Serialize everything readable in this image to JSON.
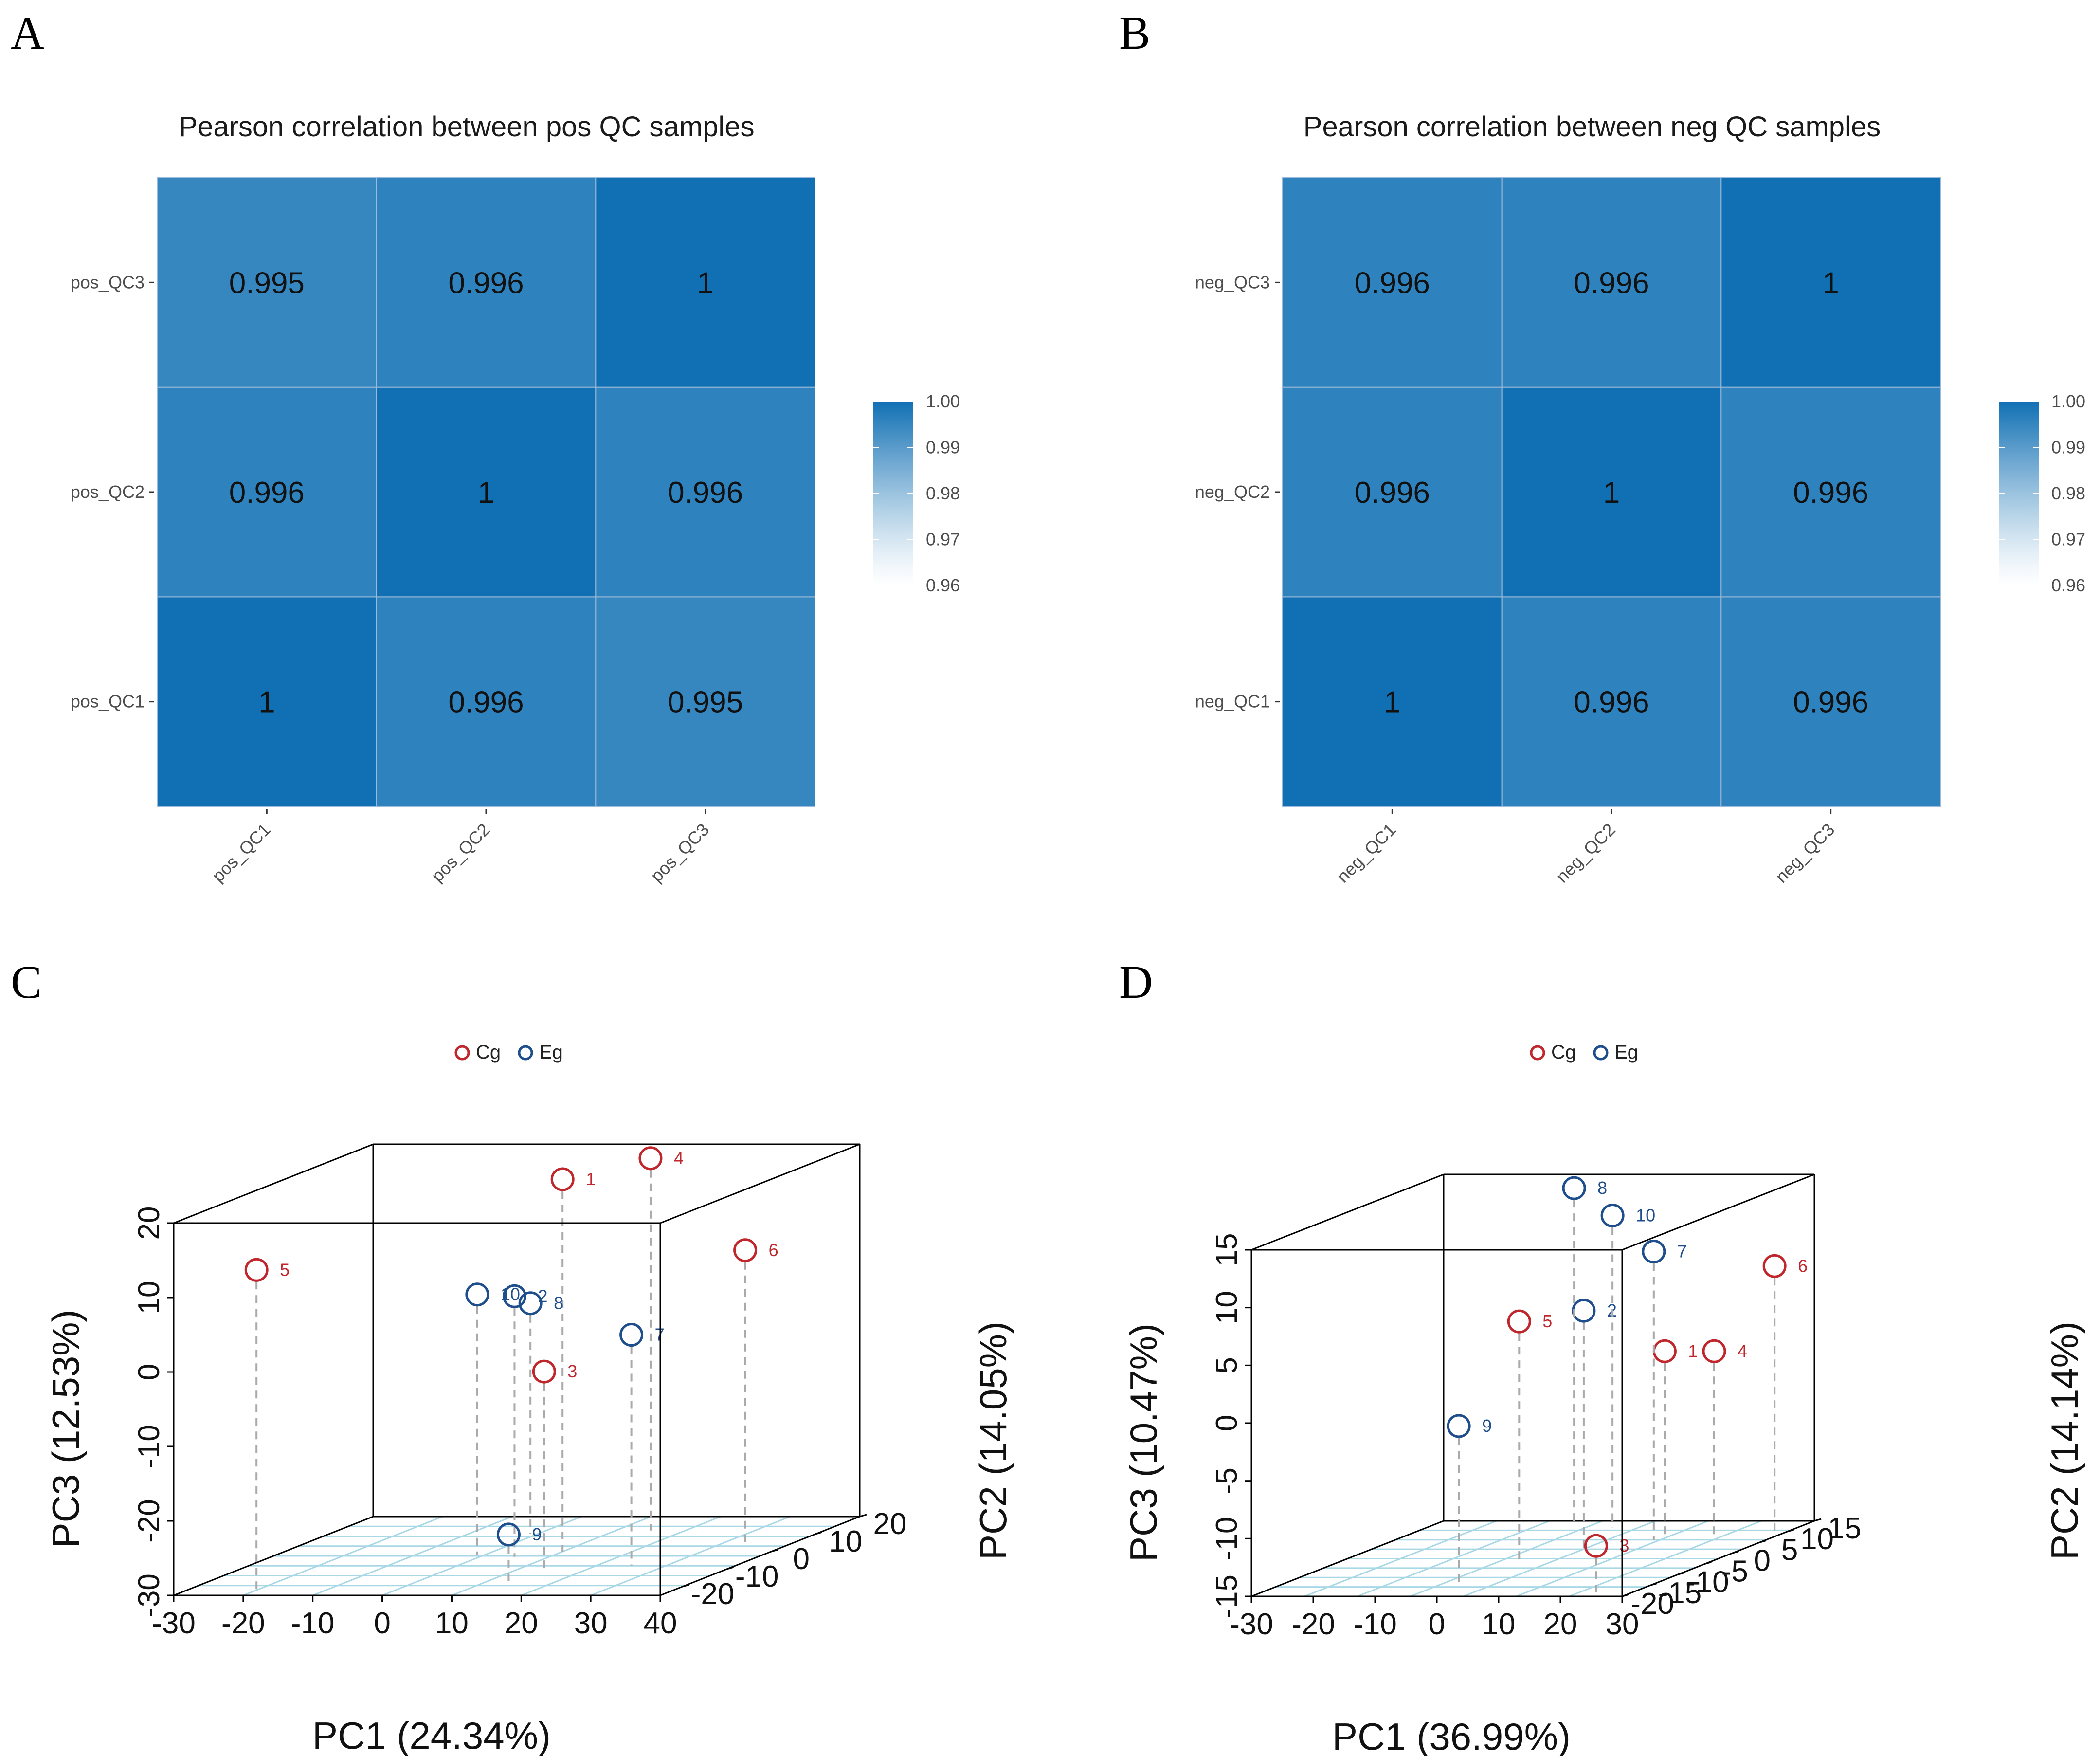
{
  "panels": [
    {
      "letter": "A"
    },
    {
      "letter": "B"
    },
    {
      "letter": "C"
    },
    {
      "letter": "D"
    }
  ],
  "chart_data": [
    {
      "type": "heatmap",
      "panel": "A",
      "title": "Pearson correlation between pos QC samples",
      "x_categories": [
        "pos_QC1",
        "pos_QC2",
        "pos_QC3"
      ],
      "y_categories": [
        "pos_QC1",
        "pos_QC2",
        "pos_QC3"
      ],
      "matrix": [
        [
          "1",
          "0.996",
          "0.995"
        ],
        [
          "0.996",
          "1",
          "0.996"
        ],
        [
          "0.995",
          "0.996",
          "1"
        ]
      ],
      "colorbar": {
        "range": [
          0.96,
          1.0
        ],
        "ticks": [
          "1.00",
          "0.99",
          "0.98",
          "0.97",
          "0.96"
        ],
        "low_color": "#ffffff",
        "high_color": "#1170b4"
      }
    },
    {
      "type": "heatmap",
      "panel": "B",
      "title": "Pearson correlation between neg QC samples",
      "x_categories": [
        "neg_QC1",
        "neg_QC2",
        "neg_QC3"
      ],
      "y_categories": [
        "neg_QC1",
        "neg_QC2",
        "neg_QC3"
      ],
      "matrix": [
        [
          "1",
          "0.996",
          "0.996"
        ],
        [
          "0.996",
          "1",
          "0.996"
        ],
        [
          "0.996",
          "0.996",
          "1"
        ]
      ],
      "colorbar": {
        "range": [
          0.96,
          1.0
        ],
        "ticks": [
          "1.00",
          "0.99",
          "0.98",
          "0.97",
          "0.96"
        ],
        "low_color": "#ffffff",
        "high_color": "#1170b4"
      }
    },
    {
      "type": "scatter",
      "subtype": "3d",
      "panel": "C",
      "legend": [
        {
          "name": "Cg",
          "color": "#c0272d"
        },
        {
          "name": "Eg",
          "color": "#1f4e8c"
        }
      ],
      "xlabel": "PC1 (24.34%)",
      "ylabel": "PC2 (14.05%)",
      "zlabel": "PC3 (12.53%)",
      "x_ticks": [
        "-30",
        "-20",
        "-10",
        "0",
        "10",
        "20",
        "30",
        "40"
      ],
      "y_ticks": [
        "-20",
        "-10",
        "0",
        "10",
        "20"
      ],
      "z_ticks": [
        "-30",
        "-20",
        "-10",
        "0",
        "10",
        "20"
      ],
      "xlim": [
        -30,
        40
      ],
      "ylim": [
        -25,
        20
      ],
      "zlim": [
        -30,
        20
      ],
      "points": [
        {
          "label": "1",
          "group": "Cg",
          "x": 10,
          "y": 0,
          "z": 20
        },
        {
          "label": "2",
          "group": "Eg",
          "x": 5,
          "y": -3,
          "z": 5
        },
        {
          "label": "3",
          "group": "Cg",
          "x": 15,
          "y": -12,
          "z": -3
        },
        {
          "label": "4",
          "group": "Cg",
          "x": 15,
          "y": 12,
          "z": 20
        },
        {
          "label": "5",
          "group": "Cg",
          "x": -20,
          "y": -22,
          "z": 13
        },
        {
          "label": "6",
          "group": "Cg",
          "x": 35,
          "y": 2,
          "z": 10
        },
        {
          "label": "7",
          "group": "Eg",
          "x": 25,
          "y": -8,
          "z": 1
        },
        {
          "label": "8",
          "group": "Eg",
          "x": -1,
          "y": 10,
          "z": 1
        },
        {
          "label": "9",
          "group": "Eg",
          "x": 15,
          "y": -20,
          "z": -23
        },
        {
          "label": "10",
          "group": "Eg",
          "x": -1,
          "y": -2,
          "z": 5
        }
      ]
    },
    {
      "type": "scatter",
      "subtype": "3d",
      "panel": "D",
      "legend": [
        {
          "name": "Cg",
          "color": "#c0272d"
        },
        {
          "name": "Eg",
          "color": "#1f4e8c"
        }
      ],
      "xlabel": "PC1 (36.99%)",
      "ylabel": "PC2 (14.14%)",
      "zlabel": "PC3 (10.47%)",
      "x_ticks": [
        "-30",
        "-20",
        "-10",
        "0",
        "10",
        "20",
        "30"
      ],
      "y_ticks": [
        "-20",
        "-15",
        "-10",
        "-5",
        "0",
        "5",
        "10",
        "15"
      ],
      "z_ticks": [
        "-15",
        "-10",
        "-5",
        "0",
        "5",
        "10",
        "15"
      ],
      "xlim": [
        -30,
        30
      ],
      "ylim": [
        -20,
        15
      ],
      "zlim": [
        -15,
        15
      ],
      "points": [
        {
          "label": "1",
          "group": "Cg",
          "x": 12,
          "y": 8,
          "z": 1
        },
        {
          "label": "2",
          "group": "Eg",
          "x": 6,
          "y": 0,
          "z": 6
        },
        {
          "label": "3",
          "group": "Cg",
          "x": 24,
          "y": -18,
          "z": -11
        },
        {
          "label": "4",
          "group": "Cg",
          "x": 20,
          "y": 8,
          "z": 1
        },
        {
          "label": "5",
          "group": "Cg",
          "x": 0,
          "y": -5,
          "z": 6
        },
        {
          "label": "6",
          "group": "Cg",
          "x": 28,
          "y": 10,
          "z": 8
        },
        {
          "label": "7",
          "group": "Eg",
          "x": 12,
          "y": 6,
          "z": 10
        },
        {
          "label": "8",
          "group": "Eg",
          "x": -8,
          "y": 14,
          "z": 14
        },
        {
          "label": "9",
          "group": "Eg",
          "x": 0,
          "y": -16,
          "z": -1
        },
        {
          "label": "10",
          "group": "Eg",
          "x": 0,
          "y": 12,
          "z": 12
        }
      ]
    }
  ]
}
